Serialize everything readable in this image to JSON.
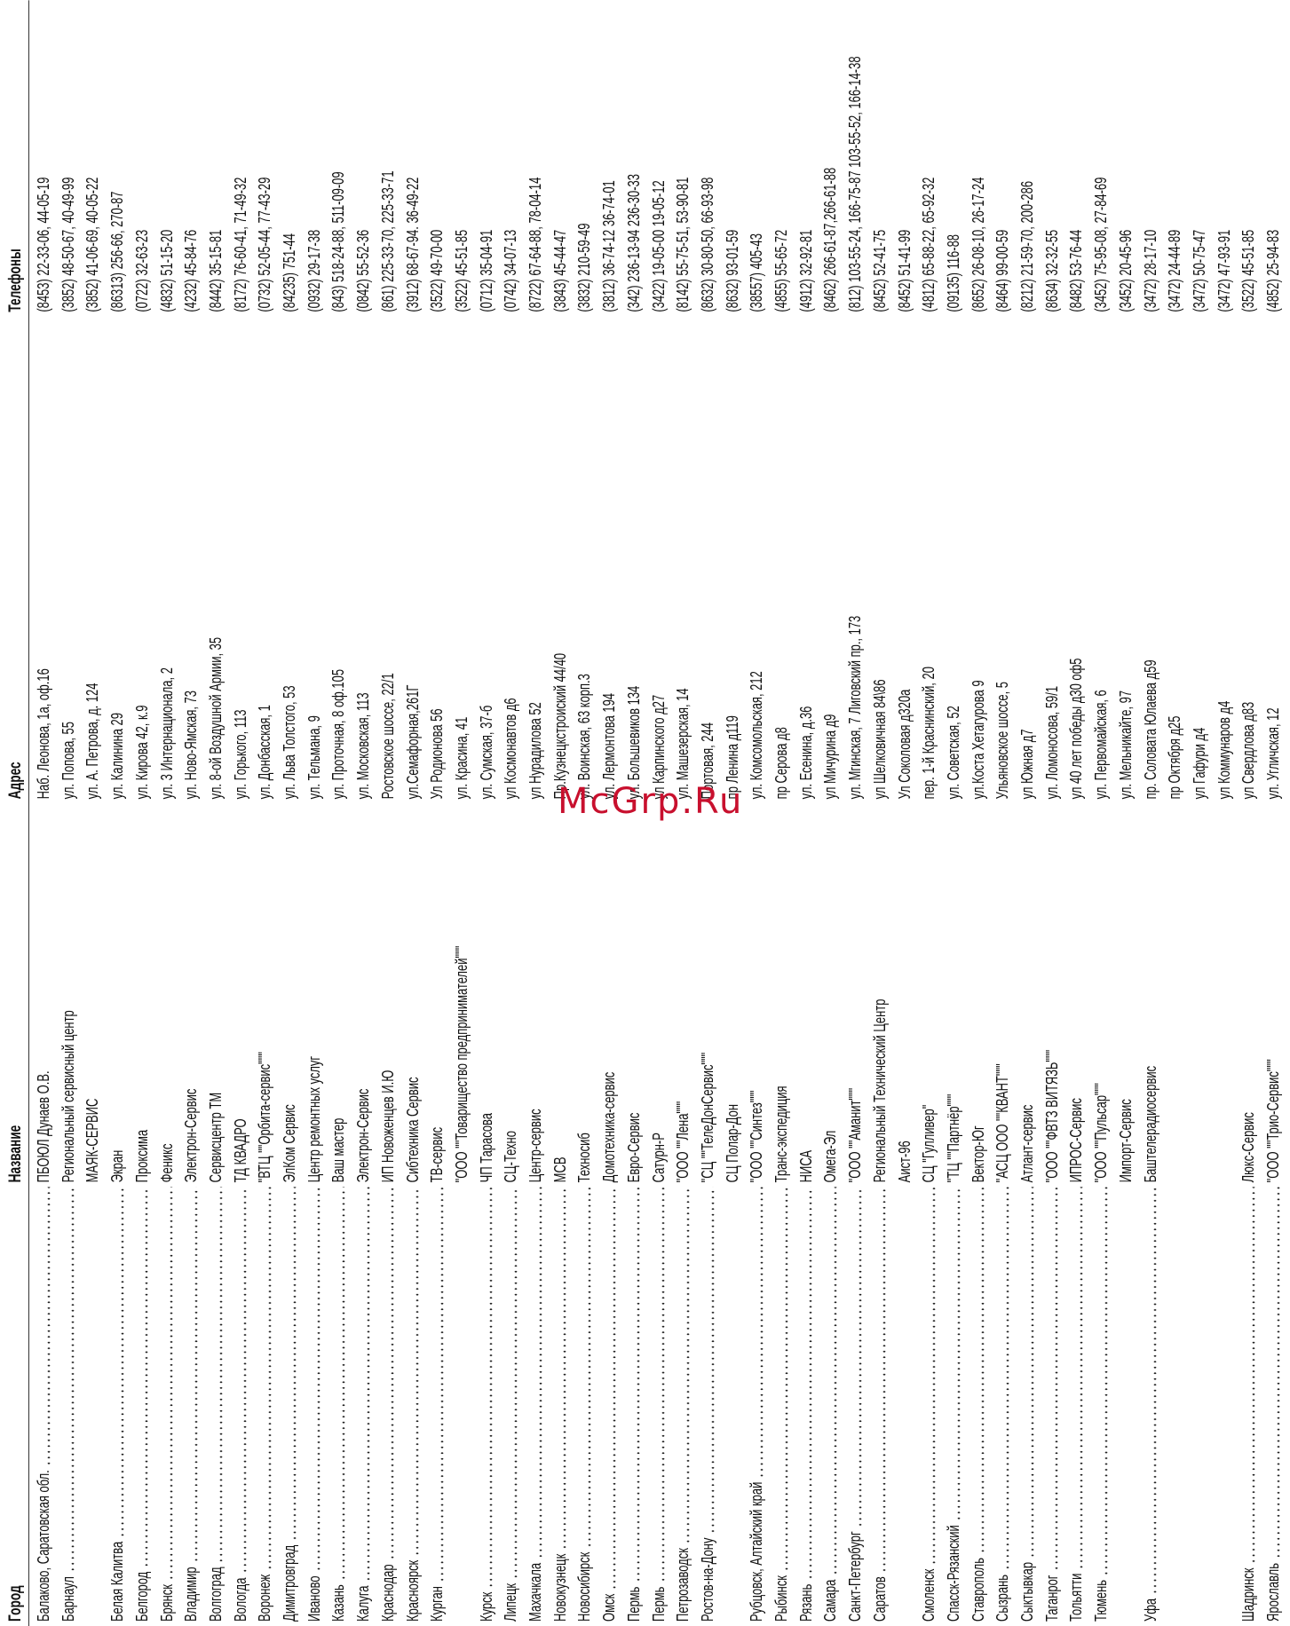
{
  "header": {
    "city": "Город",
    "name": "Название",
    "address": "Адрес",
    "phones": "Телефоны"
  },
  "rows": [
    [
      "Балаково, Саратовская обл.",
      "ПБОЮЛ Дунаев О.В.",
      "Наб. Леонова, 1а, оф.16",
      "(8453) 22-33-06, 44-05-19"
    ],
    [
      "Барнаул",
      "Региональный сервисный центр",
      "ул. Попова, 55",
      "(3852) 48-50-67, 40-49-99"
    ],
    [
      null,
      "МАЯК-СЕРВИС",
      "ул. А. Петрова, д. 124",
      "(3852) 41-06-69, 40-05-22"
    ],
    [
      "Белая Калитва",
      "Экран",
      "ул. Калинина 29",
      "(86313) 256-66, 270-87"
    ],
    [
      "Белгород",
      "Проксима",
      "ул. Кирова 42, к.9",
      "(0722) 32-63-23"
    ],
    [
      "Брянск",
      "Феникс",
      "ул. 3 Интернационала, 2",
      "(4832) 51-15-20"
    ],
    [
      "Владимир",
      "Электрон-Сервис",
      "ул. Ново-Ямская, 73",
      "(4232) 45-84-76"
    ],
    [
      "Волгоград",
      "Сервисцентр ТМ",
      "ул. 8-ой Воздушной Армии, 35",
      "(8442) 35-15-81"
    ],
    [
      "Вологда",
      "ТД КВАДРО",
      "ул. Горького, 113",
      "(8172) 76-60-41, 71-49-32"
    ],
    [
      "Воронеж",
      "\"ВТЦ \"\"Орбита-сервис\"\"\"",
      "ул. Донбасская, 1",
      "(0732) 52-05-44, 77-43-29"
    ],
    [
      "Димитровград",
      "ЭлКом Сервис",
      "ул. Льва Толстого, 53",
      "(84235) 751-44"
    ],
    [
      "Иваново",
      "Центр ремонтных услуг",
      "ул. Тельмана, 9",
      "(0932) 29-17-38"
    ],
    [
      "Казань",
      "Ваш мастер",
      "ул. Проточная, 8 оф.105",
      "(843) 518-24-88, 511-09-09"
    ],
    [
      "Калуга",
      "Электрон-Сервис",
      "ул. Московская, 113",
      "(0842) 55-52-36"
    ],
    [
      "Краснодар",
      "ИП Новоженцев И.Ю",
      "Ростовское шоссе, 22/1",
      "(861) 225-33-70, 225-33-71"
    ],
    [
      "Красноярск",
      "Сибтехника Сервис",
      "ул.Семафорная,261Г",
      "(3912) 68-67-94. 36-49-22"
    ],
    [
      "Курган",
      "ТВ-сервис",
      "Ул Родионова 56",
      "(3522) 49-70-00"
    ],
    [
      null,
      "\"ООО \"\"Товарищество предпринимателей\"\"\"",
      "ул. Красина, 41",
      "(3522) 45-51-85"
    ],
    [
      "Курск",
      "ЧП Тарасова",
      "ул. Сумская, 37-б",
      "(0712) 35-04-91"
    ],
    [
      "Липецк",
      "СЦ-Техно",
      "ул Космонавтов д6",
      "(0742) 34-07-13"
    ],
    [
      "Махачкала",
      "Центр-сервис",
      "ул Нурадилова 52",
      "(8722) 67-64-88, 78-04-14"
    ],
    [
      "Новокузнецк",
      "МСВ",
      "Пр.Кузнецкстроиский 44/40",
      "(3843) 45-44-47"
    ],
    [
      "Новосибирск",
      "Техносиб",
      "ул. Воинская, 63 корп.3",
      "(3832) 210-59-49"
    ],
    [
      "Омск",
      "Домотехника-сервис",
      "ул. Лермонтова 194",
      "(3812) 36-74-12 36-74-01"
    ],
    [
      "Пермь",
      "Евро-Сервис",
      "ул. Большевиков 134",
      "(342) 236-13-94 236-30-33"
    ],
    [
      "Пермь",
      "Сатурн-Р",
      "ул Карпинского д27",
      "(3422) 19-05-00 19-05-12"
    ],
    [
      "Петрозаводск",
      "\"ООО \"\"Лена\"\"\"",
      "ул. Машезерская, 14",
      "(8142) 55-75-51, 53-90-81"
    ],
    [
      "Ростов-на-Дону",
      "\"СЦ \"\"ТелеДонСервис\"\"\"",
      "Портовая, 244",
      "(8632) 30-80-50, 66-93-98"
    ],
    [
      null,
      "СЦ Полар-Дон",
      "пр Ленина д119",
      "(8632) 93-01-59"
    ],
    [
      "Рубцовск, Алтайский край",
      "\"ООО \"\"Синтез\"\"\"",
      "ул. Комсомольская, 212",
      "(38557) 405-43"
    ],
    [
      "Рыбинск",
      "Транс-экспедиция",
      "пр Серова д8",
      "(4855) 55-65-72"
    ],
    [
      "Рязань",
      "НИСА",
      "ул. Есенина, д.36",
      "(4912) 32-92-81"
    ],
    [
      "Самара",
      "Омега-Эл",
      "ул Мичурина д9",
      "(8462) 266-61-87,266-61-88"
    ],
    [
      "Санкт-Петербург",
      "\"ООО \"\"Аманит\"\"\"",
      "ул. Мгинская, 7 Лиговский пр., 173",
      "(812) 103-55-24, 166-75-87 103-55-52, 166-14-38"
    ],
    [
      "Саратов",
      "Региональный Технический Центр",
      "ул Шелковичная 84\\86",
      "(8452) 52-41-75"
    ],
    [
      null,
      "Аист-96",
      "Ул Соколовая д320а",
      "(8452) 51-41-99"
    ],
    [
      "Смоленск",
      "СЦ \"Гулливер\"",
      "пер. 1-й Краснинский, 20",
      "(4812) 65-88-22, 65-92-32"
    ],
    [
      "Спасск-Рязанский",
      "\"ТЦ \"\"Партнёр\"\"\"",
      "ул. Советская, 52",
      "(09135) 116-88"
    ],
    [
      "Ставрополь",
      "Вектор-Юг",
      "ул.Коста Хетагурова 9",
      "(8652) 26-08-10, 26-17-24"
    ],
    [
      "Сызрань",
      "\"АСЦ ООО \"\"КВАНТ\"\"\"",
      "Ульяновское шоссе, 5",
      "(8464) 99-00-59"
    ],
    [
      "Сыктывкар",
      "Атлант-сервис",
      "ул Южная д7",
      "(8212) 21-59-70, 200-286"
    ],
    [
      "Таганрог",
      "\"ООО \"\"ФВТЗ ВИТЯЗЬ\"\"\"",
      "ул. Ломоносова, 59/1",
      "(8634) 32-32-55"
    ],
    [
      "Тольятти",
      "ИПРОС-Сервис",
      "ул 40 лет победы д30 оф5",
      "(8482) 53-76-44"
    ],
    [
      "Тюмень",
      "\"ООО \"\"Пульсар\"\"\"",
      "ул. Первомайская, 6",
      "(3452) 75-95-08, 27-84-69"
    ],
    [
      null,
      "Импорт-Сервис",
      "ул. Мельникайте, 97",
      "(3452) 20-45-96"
    ],
    [
      "Уфа",
      "Баштелерадиосервис",
      "пр. Соловата Юлаева д59",
      "(3472) 28-17-10"
    ],
    [
      null,
      null,
      "пр Октября д25",
      "(3472) 24-44-89"
    ],
    [
      null,
      null,
      "ул Гафури д4",
      "(3472) 50-75-47"
    ],
    [
      null,
      null,
      "ул Коммунаров д4",
      "(3472) 47-93-91"
    ],
    [
      "Шадринск",
      "Люкс-Сервис",
      "ул Свердлова д83",
      "(3522) 45-51-85"
    ],
    [
      "Ярославль",
      "\"ООО \"\"Трио-Сервис\"\"\"",
      "ул. Угличская, 12",
      "(4852) 25-94-83"
    ]
  ],
  "watermark": "McGrp.Ru"
}
